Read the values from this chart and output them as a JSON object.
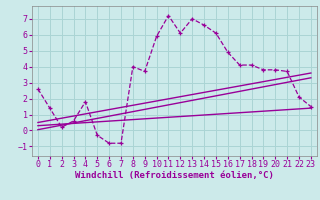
{
  "xlabel": "Windchill (Refroidissement éolien,°C)",
  "bg_color": "#cceaea",
  "grid_color": "#aad4d4",
  "line_color": "#990099",
  "xlim": [
    -0.5,
    23.5
  ],
  "ylim": [
    -1.6,
    7.8
  ],
  "xticks": [
    0,
    1,
    2,
    3,
    4,
    5,
    6,
    7,
    8,
    9,
    10,
    11,
    12,
    13,
    14,
    15,
    16,
    17,
    18,
    19,
    20,
    21,
    22,
    23
  ],
  "yticks": [
    -1,
    0,
    1,
    2,
    3,
    4,
    5,
    6,
    7
  ],
  "zigzag_x": [
    0,
    1,
    2,
    3,
    4,
    5,
    6,
    7,
    8,
    9,
    10,
    11,
    12,
    13,
    14,
    15,
    16,
    17,
    18,
    19,
    20,
    21,
    22,
    23
  ],
  "zigzag_y": [
    2.6,
    1.4,
    0.2,
    0.6,
    1.8,
    -0.3,
    -0.8,
    -0.8,
    4.0,
    3.7,
    5.9,
    7.2,
    6.1,
    7.0,
    6.6,
    6.1,
    4.9,
    4.1,
    4.1,
    3.8,
    3.8,
    3.7,
    2.1,
    1.5
  ],
  "line1_x": [
    0,
    23
  ],
  "line1_y": [
    0.5,
    3.6
  ],
  "line2_x": [
    0,
    23
  ],
  "line2_y": [
    0.3,
    1.4
  ],
  "line3_x": [
    0,
    23
  ],
  "line3_y": [
    0.05,
    3.3
  ],
  "tick_fontsize": 6,
  "xlabel_fontsize": 6.5
}
